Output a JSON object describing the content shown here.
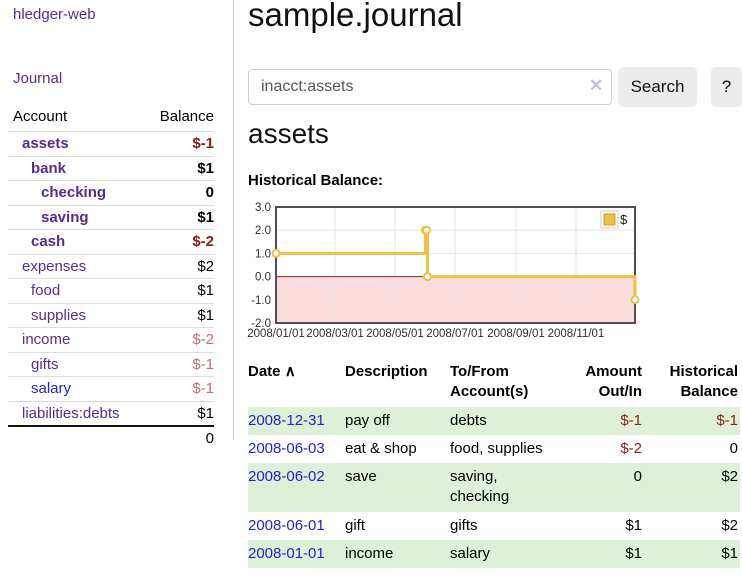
{
  "colors": {
    "link_purple": "#552d90",
    "link_blue": "#2323cc",
    "negative_strong": "#8b1c1c",
    "negative_soft": "#bb7070",
    "row_green": "#dff0d8",
    "series_gold": "#edc240",
    "negative_region_pink": "#fbdcdc",
    "zero_line_red": "#8b2222"
  },
  "sidebar": {
    "brand": "hledger-web",
    "journal_link": "Journal",
    "table": {
      "headers": {
        "account": "Account",
        "balance": "Balance"
      },
      "accounts": [
        {
          "name": "assets",
          "balance": "$-1"
        },
        {
          "name": "bank",
          "balance": "$1"
        },
        {
          "name": "checking",
          "balance": "0"
        },
        {
          "name": "saving",
          "balance": "$1"
        },
        {
          "name": "cash",
          "balance": "$-2"
        },
        {
          "name": "expenses",
          "balance": "$2"
        },
        {
          "name": "food",
          "balance": "$1"
        },
        {
          "name": "supplies",
          "balance": "$1"
        },
        {
          "name": "income",
          "balance": "$-2"
        },
        {
          "name": "gifts",
          "balance": "$-1"
        },
        {
          "name": "salary",
          "balance": "$-1"
        },
        {
          "name": "liabilities:debts",
          "balance": "$1"
        }
      ],
      "total": "0"
    }
  },
  "main": {
    "title": "sample.journal",
    "search": {
      "value": "inacct:assets",
      "clear_icon": "✕",
      "button_label": "Search",
      "help_label": "?"
    },
    "section_heading": "assets",
    "chart_label": "Historical Balance:"
  },
  "chart_data": {
    "type": "line",
    "title": "Historical Balance",
    "step": true,
    "series": [
      {
        "name": "$",
        "points": [
          [
            "2008-01-01",
            1
          ],
          [
            "2008-06-01",
            2
          ],
          [
            "2008-06-02",
            2
          ],
          [
            "2008-06-03",
            0
          ],
          [
            "2008-12-31",
            -1
          ]
        ]
      }
    ],
    "x_range": [
      "2008-01-01",
      "2008-12-31"
    ],
    "ylim": [
      -2,
      3
    ],
    "yticks": [
      "3.0",
      "2.0",
      "1.0",
      "0.0",
      "-1.0",
      "-2.0"
    ],
    "xticks": [
      "2008/01/01",
      "2008/03/01",
      "2008/05/01",
      "2008/07/01",
      "2008/09/01",
      "2008/11/01"
    ],
    "legend": "$",
    "legend_position": "top-right",
    "grid": true,
    "negative_region_shaded": true
  },
  "register": {
    "headers": {
      "date": "Date",
      "sort_icon": "∧",
      "description": "Description",
      "accounts": "To/From Account(s)",
      "amount": "Amount Out/In",
      "balance": "Historical Balance"
    },
    "rows": [
      {
        "date": "2008-12-31",
        "description": "pay off",
        "accounts": "debts",
        "amount": "$-1",
        "balance": "$-1"
      },
      {
        "date": "2008-06-03",
        "description": "eat & shop",
        "accounts": "food, supplies",
        "amount": "$-2",
        "balance": "0"
      },
      {
        "date": "2008-06-02",
        "description": "save",
        "accounts": "saving, checking",
        "amount": "0",
        "balance": "$2"
      },
      {
        "date": "2008-06-01",
        "description": "gift",
        "accounts": "gifts",
        "amount": "$1",
        "balance": "$2"
      },
      {
        "date": "2008-01-01",
        "description": "income",
        "accounts": "salary",
        "amount": "$1",
        "balance": "$1"
      }
    ]
  }
}
